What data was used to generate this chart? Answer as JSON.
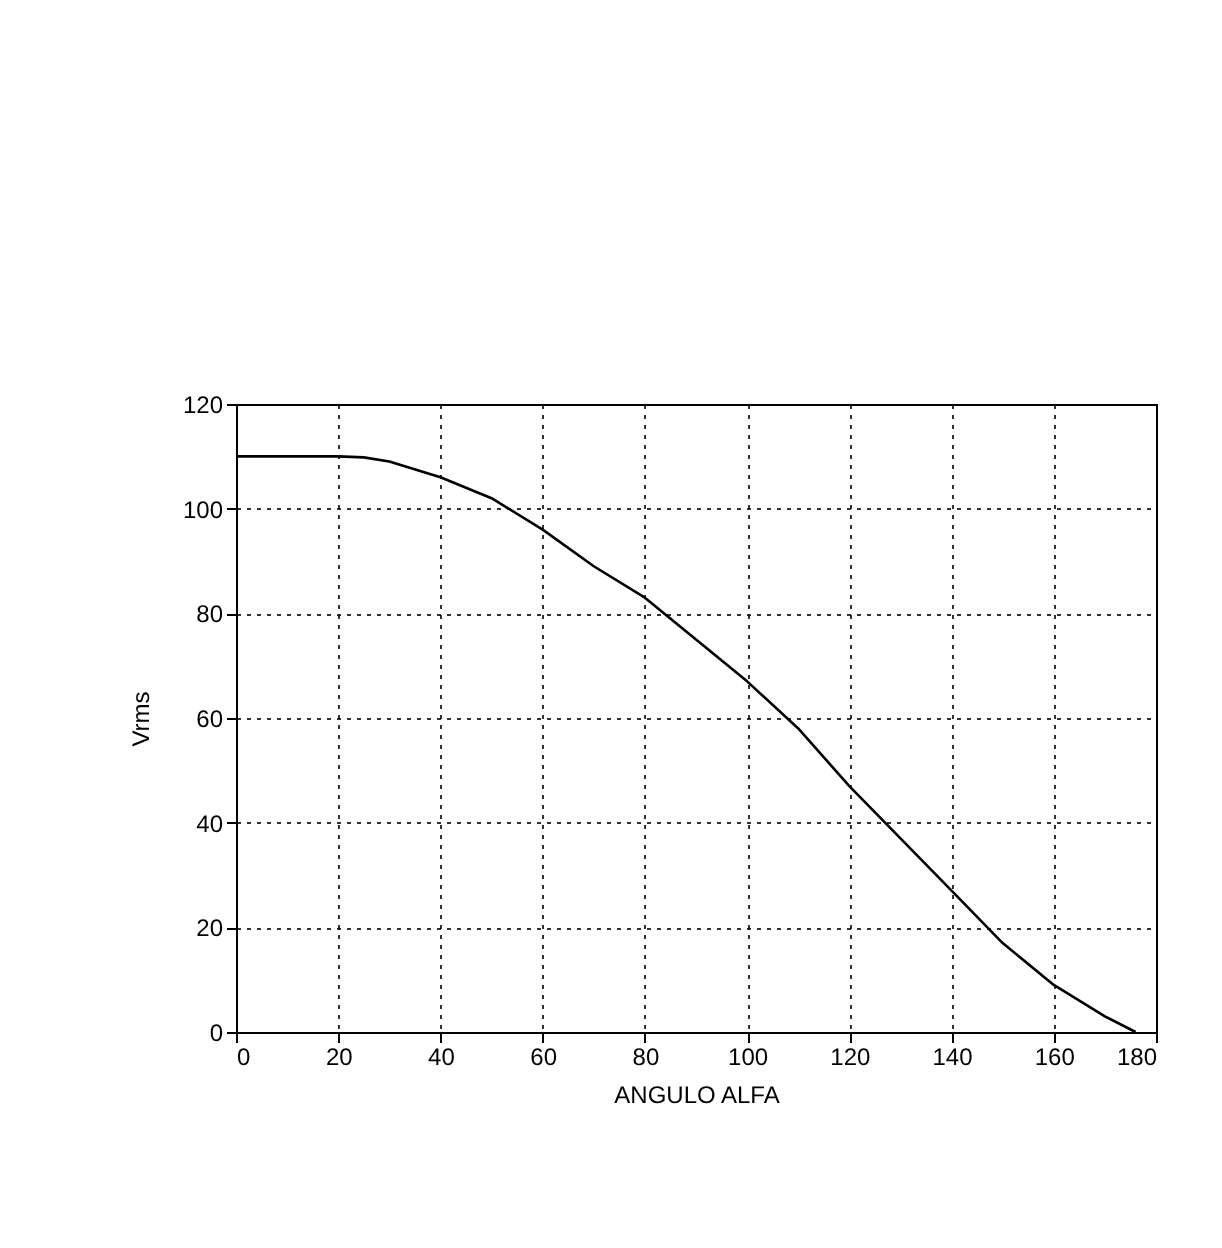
{
  "chart_data": {
    "type": "line",
    "xlabel": "ANGULO ALFA",
    "ylabel": "Vrms",
    "x": [
      0,
      10,
      20,
      25,
      30,
      40,
      50,
      60,
      70,
      80,
      90,
      100,
      110,
      120,
      130,
      140,
      150,
      160,
      170,
      176
    ],
    "series": [
      {
        "color": "#000000",
        "values": [
          110,
          110,
          110,
          109.8,
          109,
          106,
          102,
          96,
          89,
          83,
          75,
          67,
          58,
          47,
          37,
          27,
          17,
          9,
          3,
          0
        ]
      }
    ],
    "xlim": [
      0,
      180
    ],
    "xticks": [
      0,
      20,
      40,
      60,
      80,
      100,
      120,
      140,
      160,
      180
    ],
    "ylim": [
      0,
      120
    ],
    "yticks": [
      0,
      20,
      40,
      60,
      80,
      100,
      120
    ],
    "grid": true,
    "marker": "none",
    "line_style": "solid"
  }
}
